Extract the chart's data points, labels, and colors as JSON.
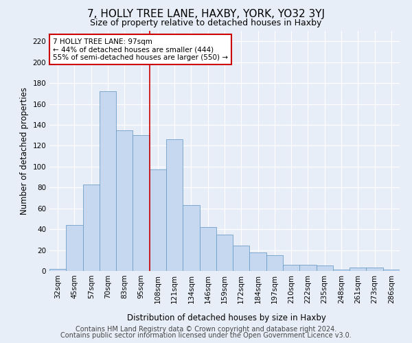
{
  "title": "7, HOLLY TREE LANE, HAXBY, YORK, YO32 3YJ",
  "subtitle": "Size of property relative to detached houses in Haxby",
  "xlabel": "Distribution of detached houses by size in Haxby",
  "ylabel": "Number of detached properties",
  "categories": [
    "32sqm",
    "45sqm",
    "57sqm",
    "70sqm",
    "83sqm",
    "95sqm",
    "108sqm",
    "121sqm",
    "134sqm",
    "146sqm",
    "159sqm",
    "172sqm",
    "184sqm",
    "197sqm",
    "210sqm",
    "222sqm",
    "235sqm",
    "248sqm",
    "261sqm",
    "273sqm",
    "286sqm"
  ],
  "values": [
    2,
    44,
    83,
    172,
    135,
    130,
    97,
    126,
    63,
    42,
    35,
    24,
    18,
    15,
    6,
    6,
    5,
    1,
    3,
    3,
    1
  ],
  "bar_color": "#c5d8f0",
  "bar_edge_color": "#6e9ec8",
  "bar_width": 1.0,
  "vline_x": 5.5,
  "vline_color": "#cc0000",
  "ylim": [
    0,
    230
  ],
  "yticks": [
    0,
    20,
    40,
    60,
    80,
    100,
    120,
    140,
    160,
    180,
    200,
    220
  ],
  "annotation_text": "7 HOLLY TREE LANE: 97sqm\n← 44% of detached houses are smaller (444)\n55% of semi-detached houses are larger (550) →",
  "annotation_box_color": "#ffffff",
  "annotation_box_edge_color": "#cc0000",
  "footer_line1": "Contains HM Land Registry data © Crown copyright and database right 2024.",
  "footer_line2": "Contains public sector information licensed under the Open Government Licence v3.0.",
  "bg_color": "#e8eef8",
  "plot_bg_color": "#e8eef8",
  "title_fontsize": 11,
  "subtitle_fontsize": 9,
  "axis_label_fontsize": 8.5,
  "tick_fontsize": 7.5,
  "annotation_fontsize": 7.5,
  "footer_fontsize": 7
}
